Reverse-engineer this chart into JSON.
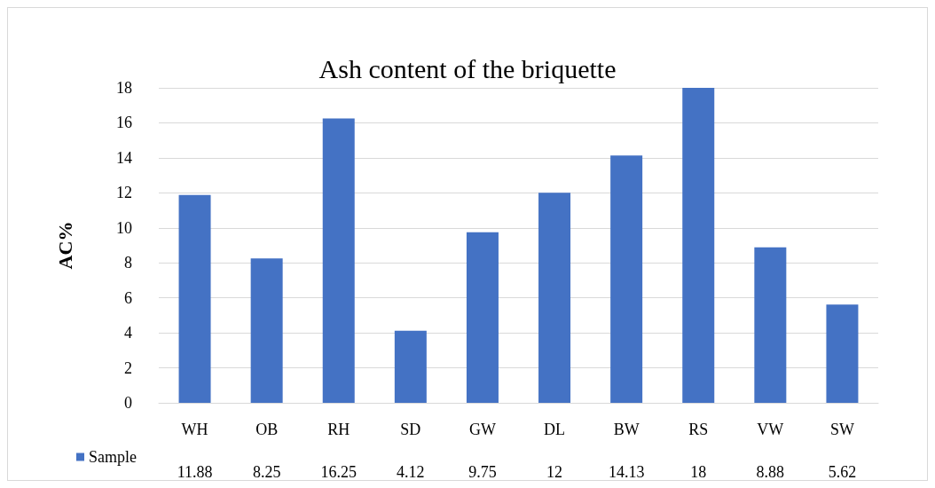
{
  "chart_data": {
    "type": "bar",
    "title": "Ash content of the briquette",
    "ylabel": "AC%",
    "categories": [
      "WH",
      "OB",
      "RH",
      "SD",
      "GW",
      "DL",
      "BW",
      "RS",
      "VW",
      "SW"
    ],
    "series": [
      {
        "name": "Sample",
        "color": "#4472c4",
        "values": [
          11.88,
          8.25,
          16.25,
          4.12,
          9.75,
          12,
          14.13,
          18,
          8.88,
          5.62
        ]
      }
    ],
    "ylim": [
      0,
      18
    ],
    "yticks": [
      0,
      2,
      4,
      6,
      8,
      10,
      12,
      14,
      16,
      18
    ],
    "grid": "y",
    "legend": "bottom left",
    "data_labels": true
  }
}
